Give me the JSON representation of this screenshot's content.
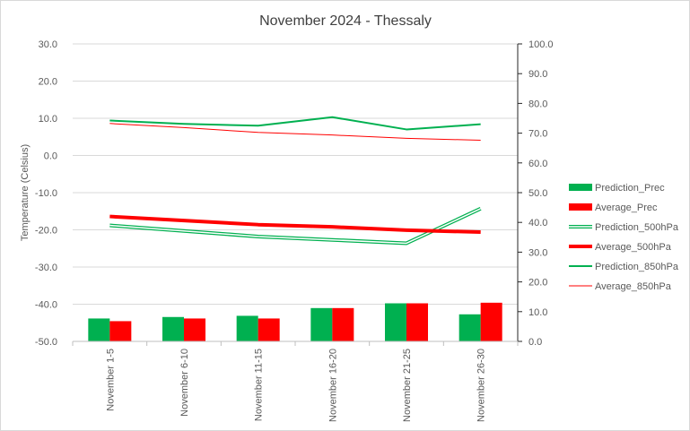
{
  "chart_data": {
    "type": "bar",
    "title": "November 2024 - Thessaly",
    "ylabel": "Temperature (Celsius)",
    "xlabel": "",
    "ylim": [
      -50,
      30
    ],
    "y2lim": [
      0,
      100
    ],
    "y_ticks": [
      "30.0",
      "20.0",
      "10.0",
      "0.0",
      "-10.0",
      "-20.0",
      "-30.0",
      "-40.0",
      "-50.0"
    ],
    "y2_ticks": [
      "100.0",
      "90.0",
      "80.0",
      "70.0",
      "60.0",
      "50.0",
      "40.0",
      "30.0",
      "20.0",
      "10.0",
      "0.0"
    ],
    "grid": "horizontal",
    "legend_position": "right",
    "categories": [
      "November 1-5",
      "November 6-10",
      "November 11-15",
      "November 16-20",
      "November 21-25",
      "November 26-30"
    ],
    "series": [
      {
        "name": "Prediction_Prec",
        "kind": "bar",
        "axis": "right",
        "color": "#00b050",
        "values": [
          7.7,
          8.2,
          8.6,
          11.2,
          12.8,
          9.1
        ]
      },
      {
        "name": "Average_Prec",
        "kind": "bar",
        "axis": "right",
        "color": "#ff0000",
        "values": [
          6.8,
          7.7,
          7.7,
          11.2,
          12.8,
          13.0
        ]
      },
      {
        "name": "Prediction_500hPa",
        "kind": "line",
        "style": "double",
        "axis": "left",
        "color": "#00b050",
        "values": [
          -18.8,
          -20.3,
          -21.8,
          -22.7,
          -23.6,
          -14.3
        ]
      },
      {
        "name": "Average_500hPa",
        "kind": "line",
        "style": "thick",
        "axis": "left",
        "color": "#ff0000",
        "values": [
          -16.4,
          -17.5,
          -18.6,
          -19.2,
          -20.1,
          -20.6
        ]
      },
      {
        "name": "Prediction_850hPa",
        "kind": "line",
        "style": "medium",
        "axis": "left",
        "color": "#00b050",
        "values": [
          9.4,
          8.5,
          8.0,
          10.3,
          7.0,
          8.4
        ]
      },
      {
        "name": "Average_850hPa",
        "kind": "line",
        "style": "thin",
        "axis": "left",
        "color": "#ff0000",
        "values": [
          8.6,
          7.5,
          6.2,
          5.5,
          4.6,
          4.1
        ]
      }
    ]
  }
}
